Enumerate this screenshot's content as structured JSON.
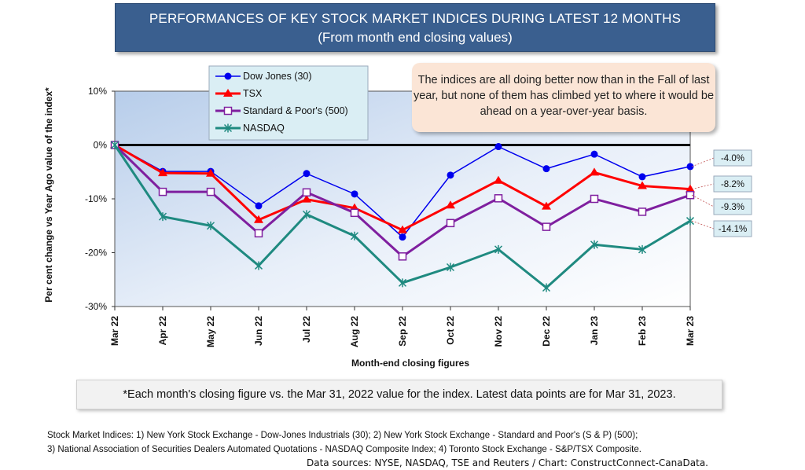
{
  "title_line1": "PERFORMANCES OF KEY STOCK MARKET INDICES DURING LATEST 12 MONTHS",
  "title_line2": "(From month end closing values)",
  "note": "The indices are all doing better now than in the Fall of last year, but none of them has climbed yet to where it would be ahead on a year-over-year basis.",
  "footnote": "*Each month's closing figure vs. the Mar 31, 2022 value for the index. Latest data points are for Mar 31, 2023.",
  "sources": {
    "line1": "Stock Market Indices: 1) New York Stock Exchange - Dow-Jones Industrials (30); 2) New York Stock Exchange - Standard and Poor's (S & P) (500);",
    "line2": "3) National Association of Securities Dealers Automated Quotations - NASDAQ Composite Index; 4) Toronto Stock Exchange - S&P/TSX Composite.",
    "line3": "Data sources: NYSE, NASDAQ, TSE and Reuters / Chart: ConstructConnect-CanaData."
  },
  "chart_data": {
    "type": "line",
    "xlabel": "Month-end closing figures",
    "ylabel": "Per cent change vs Year Ago value of the index*",
    "ylim": [
      -30,
      10
    ],
    "yticks": [
      10,
      0,
      -10,
      -20,
      -30
    ],
    "ytick_labels": [
      "10%",
      "0%",
      "-10%",
      "-20%",
      "-30%"
    ],
    "categories": [
      "Mar 22",
      "Apr 22",
      "May 22",
      "Jun 22",
      "Jul 22",
      "Aug 22",
      "Sep 22",
      "Oct 22",
      "Nov 22",
      "Dec 22",
      "Jan 23",
      "Feb 23",
      "Mar 23"
    ],
    "legend_position": "top-left",
    "series": [
      {
        "name": "Dow Jones (30)",
        "color": "#0000ee",
        "marker": "circle",
        "values": [
          0,
          -4.9,
          -4.9,
          -11.3,
          -5.3,
          -9.1,
          -17.1,
          -5.6,
          -0.3,
          -4.4,
          -1.7,
          -5.9,
          -4.0
        ],
        "end_label": "-4.0%"
      },
      {
        "name": "TSX",
        "color": "#ff0000",
        "marker": "triangle",
        "values": [
          0,
          -5.2,
          -5.3,
          -13.9,
          -10.1,
          -11.7,
          -15.8,
          -11.2,
          -6.6,
          -11.4,
          -5.1,
          -7.6,
          -8.2
        ],
        "end_label": "-8.2%"
      },
      {
        "name": "Standard & Poor's (500)",
        "color": "#7f1f9f",
        "marker": "square",
        "values": [
          0,
          -8.7,
          -8.7,
          -16.4,
          -8.8,
          -12.6,
          -20.7,
          -14.5,
          -9.9,
          -15.2,
          -10.0,
          -12.4,
          -9.3
        ],
        "end_label": "-9.3%"
      },
      {
        "name": "NASDAQ",
        "color": "#1f8a80",
        "marker": "star",
        "values": [
          0,
          -13.3,
          -15.0,
          -22.4,
          -12.9,
          -16.9,
          -25.6,
          -22.7,
          -19.4,
          -26.5,
          -18.5,
          -19.4,
          -14.1
        ],
        "end_label": "-14.1%"
      }
    ]
  }
}
